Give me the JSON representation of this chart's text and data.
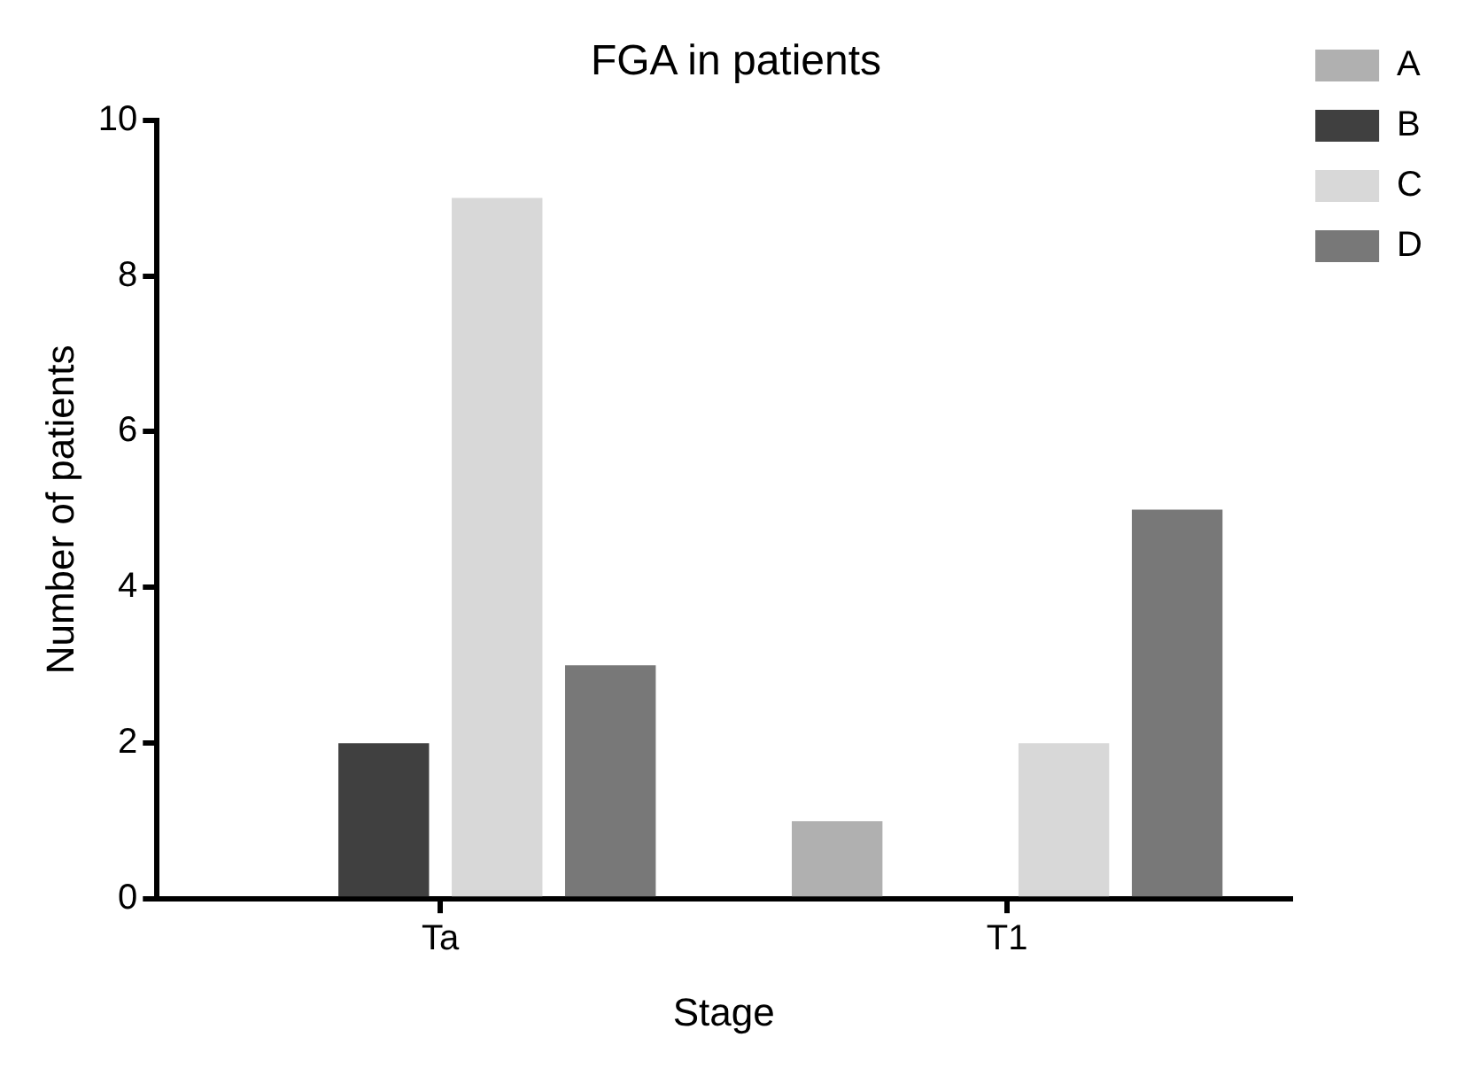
{
  "chart_data": {
    "type": "bar",
    "title": "FGA in patients",
    "xlabel": "Stage",
    "ylabel": "Number of patients",
    "categories": [
      "Ta",
      "T1"
    ],
    "series": [
      {
        "name": "A",
        "color": "#b0b0b0",
        "values": [
          0,
          1
        ]
      },
      {
        "name": "B",
        "color": "#404040",
        "values": [
          2,
          0
        ]
      },
      {
        "name": "C",
        "color": "#d8d8d8",
        "values": [
          9,
          2
        ]
      },
      {
        "name": "D",
        "color": "#787878",
        "values": [
          3,
          5
        ]
      }
    ],
    "ylim": [
      0,
      10
    ],
    "yticks": [
      0,
      2,
      4,
      6,
      8,
      10
    ],
    "grid": false,
    "legend": "top right"
  }
}
